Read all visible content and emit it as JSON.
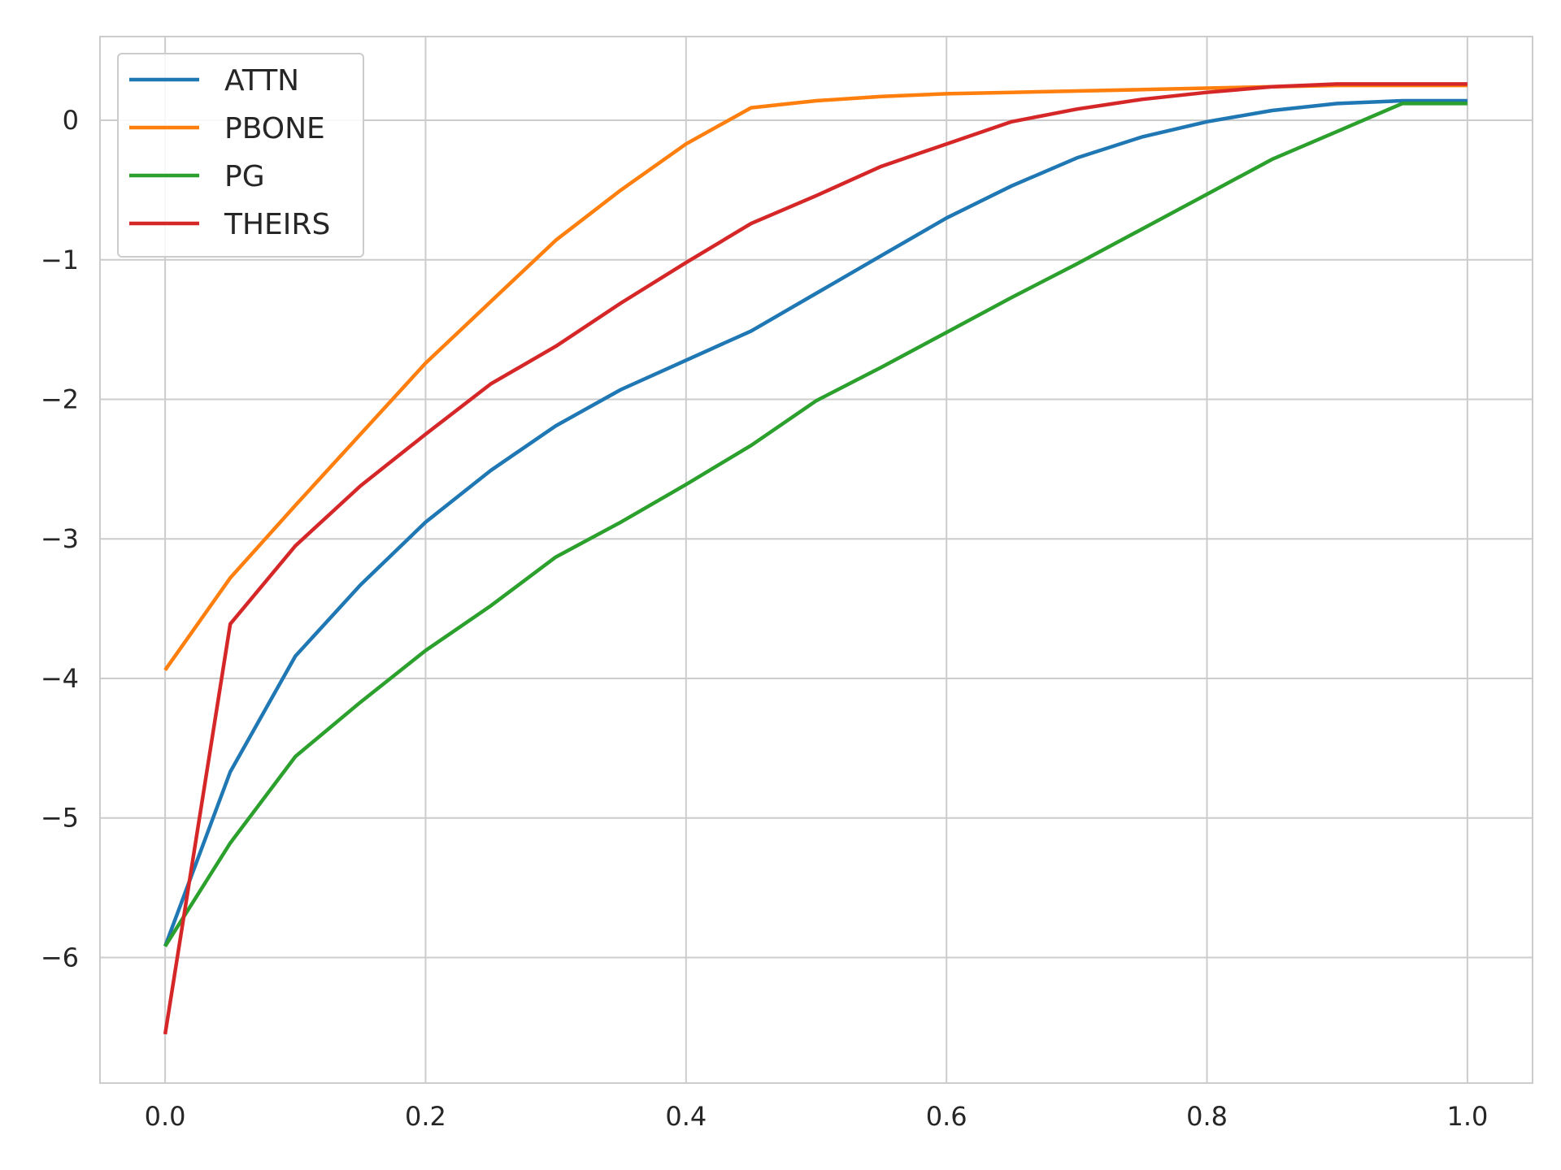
{
  "chart_data": {
    "type": "line",
    "title": "",
    "xlabel": "",
    "ylabel": "",
    "xlim": [
      -0.05,
      1.05
    ],
    "ylim": [
      -6.9,
      0.6
    ],
    "xticks": [
      0.0,
      0.2,
      0.4,
      0.6,
      0.8,
      1.0
    ],
    "xtick_labels": [
      "0.0",
      "0.2",
      "0.4",
      "0.6",
      "0.8",
      "1.0"
    ],
    "yticks": [
      0,
      -1,
      -2,
      -3,
      -4,
      -5,
      -6
    ],
    "ytick_labels": [
      "0",
      "−1",
      "−2",
      "−3",
      "−4",
      "−5",
      "−6"
    ],
    "grid": true,
    "legend_position": "top-left",
    "x": [
      0.0,
      0.05,
      0.1,
      0.15,
      0.2,
      0.25,
      0.3,
      0.35,
      0.4,
      0.45,
      0.5,
      0.55,
      0.6,
      0.65,
      0.7,
      0.75,
      0.8,
      0.85,
      0.9,
      0.95,
      1.0
    ],
    "series": [
      {
        "name": "ATTN",
        "color": "#1f77b4",
        "values": [
          -5.92,
          -4.67,
          -3.84,
          -3.33,
          -2.88,
          -2.51,
          -2.19,
          -1.93,
          -1.72,
          -1.51,
          -1.24,
          -0.97,
          -0.7,
          -0.47,
          -0.27,
          -0.12,
          -0.01,
          0.07,
          0.12,
          0.14,
          0.14
        ]
      },
      {
        "name": "PBONE",
        "color": "#ff7f0e",
        "values": [
          -3.94,
          -3.28,
          -2.76,
          -2.25,
          -1.74,
          -1.3,
          -0.86,
          -0.5,
          -0.17,
          0.09,
          0.14,
          0.17,
          0.19,
          0.2,
          0.21,
          0.22,
          0.23,
          0.24,
          0.25,
          0.25,
          0.25
        ]
      },
      {
        "name": "PG",
        "color": "#2ca02c",
        "values": [
          -5.92,
          -5.18,
          -4.56,
          -4.17,
          -3.8,
          -3.48,
          -3.13,
          -2.88,
          -2.61,
          -2.33,
          -2.01,
          -1.77,
          -1.52,
          -1.27,
          -1.03,
          -0.78,
          -0.53,
          -0.28,
          -0.08,
          0.12,
          0.12
        ]
      },
      {
        "name": "THEIRS",
        "color": "#d62728",
        "values": [
          -6.55,
          -3.61,
          -3.05,
          -2.62,
          -2.25,
          -1.89,
          -1.62,
          -1.31,
          -1.02,
          -0.74,
          -0.54,
          -0.33,
          -0.17,
          -0.01,
          0.08,
          0.15,
          0.2,
          0.24,
          0.26,
          0.26,
          0.26
        ]
      }
    ]
  }
}
